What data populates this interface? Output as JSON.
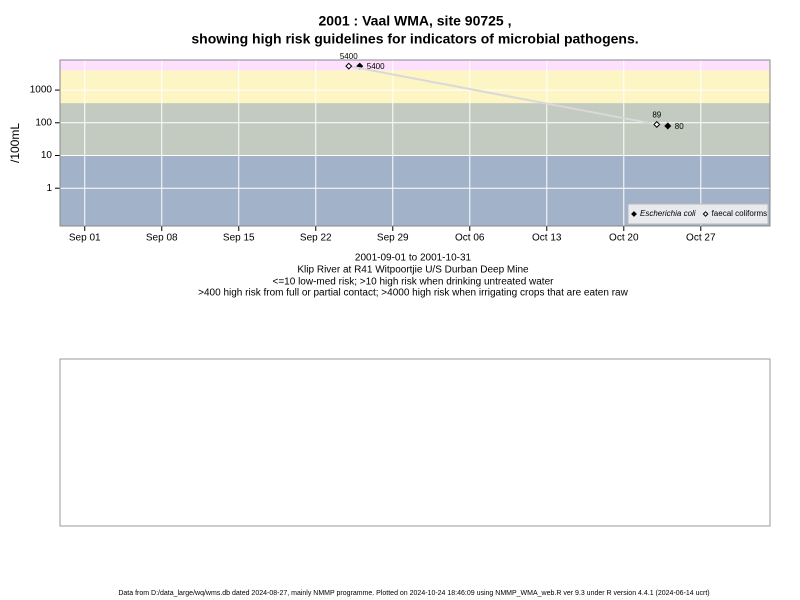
{
  "chart_data": {
    "type": "scatter",
    "title": [
      "2001 : Vaal WMA, site 90725 ,",
      "showing high risk guidelines for indicators of microbial pathogens."
    ],
    "ylabel": "/100mL",
    "subtitle": [
      "2001-09-01 to 2001-10-31",
      "Klip River at R41 Witpoortjie U/S Durban Deep Mine",
      "<=10 low-med risk; >10 high risk when drinking untreated water",
      ">400 high risk from full or partial contact; >4000 high risk when irrigating crops that are eaten raw"
    ],
    "footer": "Data from D:/data_large/wq/wms.db dated 2024-08-27, mainly NMMP programme. Plotted on 2024-10-24 18:46:09 using NMMP_WMA_web.R ver 9.3 under R version 4.4.1 (2024-06-14 ucrt)",
    "log_scale": true,
    "ylim": [
      0.07,
      8300
    ],
    "yticks": [
      1,
      10,
      100,
      1000
    ],
    "xlim": [
      "2001-08-29T18:00",
      "2001-11-02T07:00"
    ],
    "xticks": [
      {
        "value": "2001-09-01",
        "label": "Sep 01"
      },
      {
        "value": "2001-09-08",
        "label": "Sep 08"
      },
      {
        "value": "2001-09-15",
        "label": "Sep 15"
      },
      {
        "value": "2001-09-22",
        "label": "Sep 22"
      },
      {
        "value": "2001-09-29",
        "label": "Sep 29"
      },
      {
        "value": "2001-10-06",
        "label": "Oct 06"
      },
      {
        "value": "2001-10-13",
        "label": "Oct 13"
      },
      {
        "value": "2001-10-20",
        "label": "Oct 20"
      },
      {
        "value": "2001-10-27",
        "label": "Oct 27"
      }
    ],
    "bands": [
      {
        "from": 0.07,
        "to": 10,
        "color": "#a2b2c8"
      },
      {
        "from": 10,
        "to": 400,
        "color": "#c3cabf"
      },
      {
        "from": 400,
        "to": 4000,
        "color": "#fdf5c3"
      },
      {
        "from": 4000,
        "to": 8300,
        "color": "#fde0fd"
      }
    ],
    "grid": true,
    "legend_position": "bottom-right",
    "series": [
      {
        "name": "Escherichia coli",
        "color": "#000000",
        "marker": "filled",
        "x": [
          "2001-09-26",
          "2001-10-24"
        ],
        "values": [
          5400,
          80
        ]
      },
      {
        "name": "faecal coliforms",
        "color": "#000000",
        "marker": "open",
        "line_color": "#d9d9d9",
        "x": [
          "2001-09-25",
          "2001-10-23"
        ],
        "values": [
          5400,
          89
        ]
      }
    ]
  }
}
